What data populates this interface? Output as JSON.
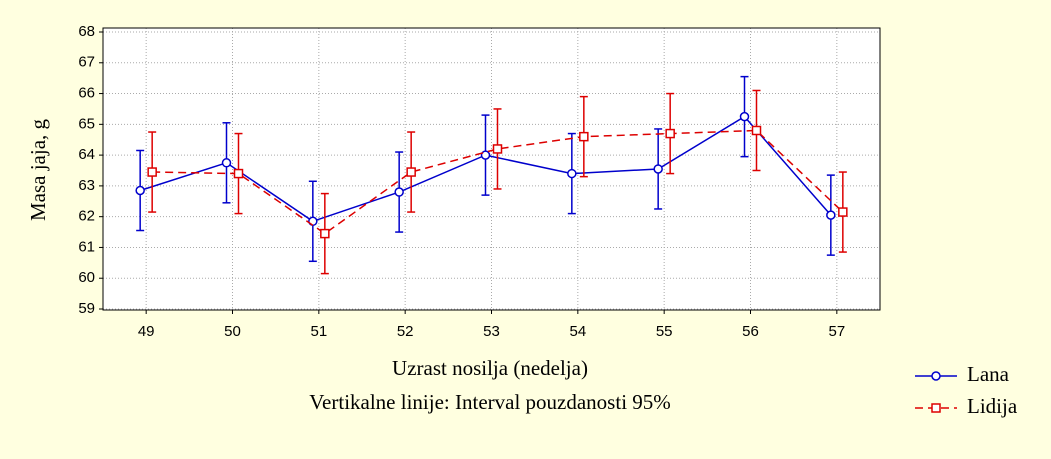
{
  "chart_data": {
    "type": "line",
    "x_label": "Uzrast nosilja (nedelja)",
    "annotation": "Vertikalne linije: Interval pouzdanosti 95%",
    "y_label": "Masa jaja, g",
    "categories": [
      "49",
      "50",
      "51",
      "52",
      "53",
      "54",
      "55",
      "56",
      "57"
    ],
    "series": [
      {
        "name": "Lana",
        "color": "#0000cc",
        "marker": "circle",
        "dashed": false,
        "values": [
          62.85,
          63.75,
          61.85,
          62.8,
          64.0,
          63.4,
          63.55,
          65.25,
          62.05
        ],
        "errors": [
          1.3,
          1.3,
          1.3,
          1.3,
          1.3,
          1.3,
          1.3,
          1.3,
          1.3
        ]
      },
      {
        "name": "Lidija",
        "color": "#dd0000",
        "marker": "square",
        "dashed": true,
        "values": [
          63.45,
          63.4,
          61.45,
          63.45,
          64.2,
          64.6,
          64.7,
          64.8,
          62.15
        ],
        "errors": [
          1.3,
          1.3,
          1.3,
          1.3,
          1.3,
          1.3,
          1.3,
          1.3,
          1.3
        ]
      }
    ],
    "ylim": [
      59,
      68
    ],
    "yticks": [
      59,
      60,
      61,
      62,
      63,
      64,
      65,
      66,
      67,
      68
    ],
    "grid": true,
    "legend": "bottom-right"
  }
}
